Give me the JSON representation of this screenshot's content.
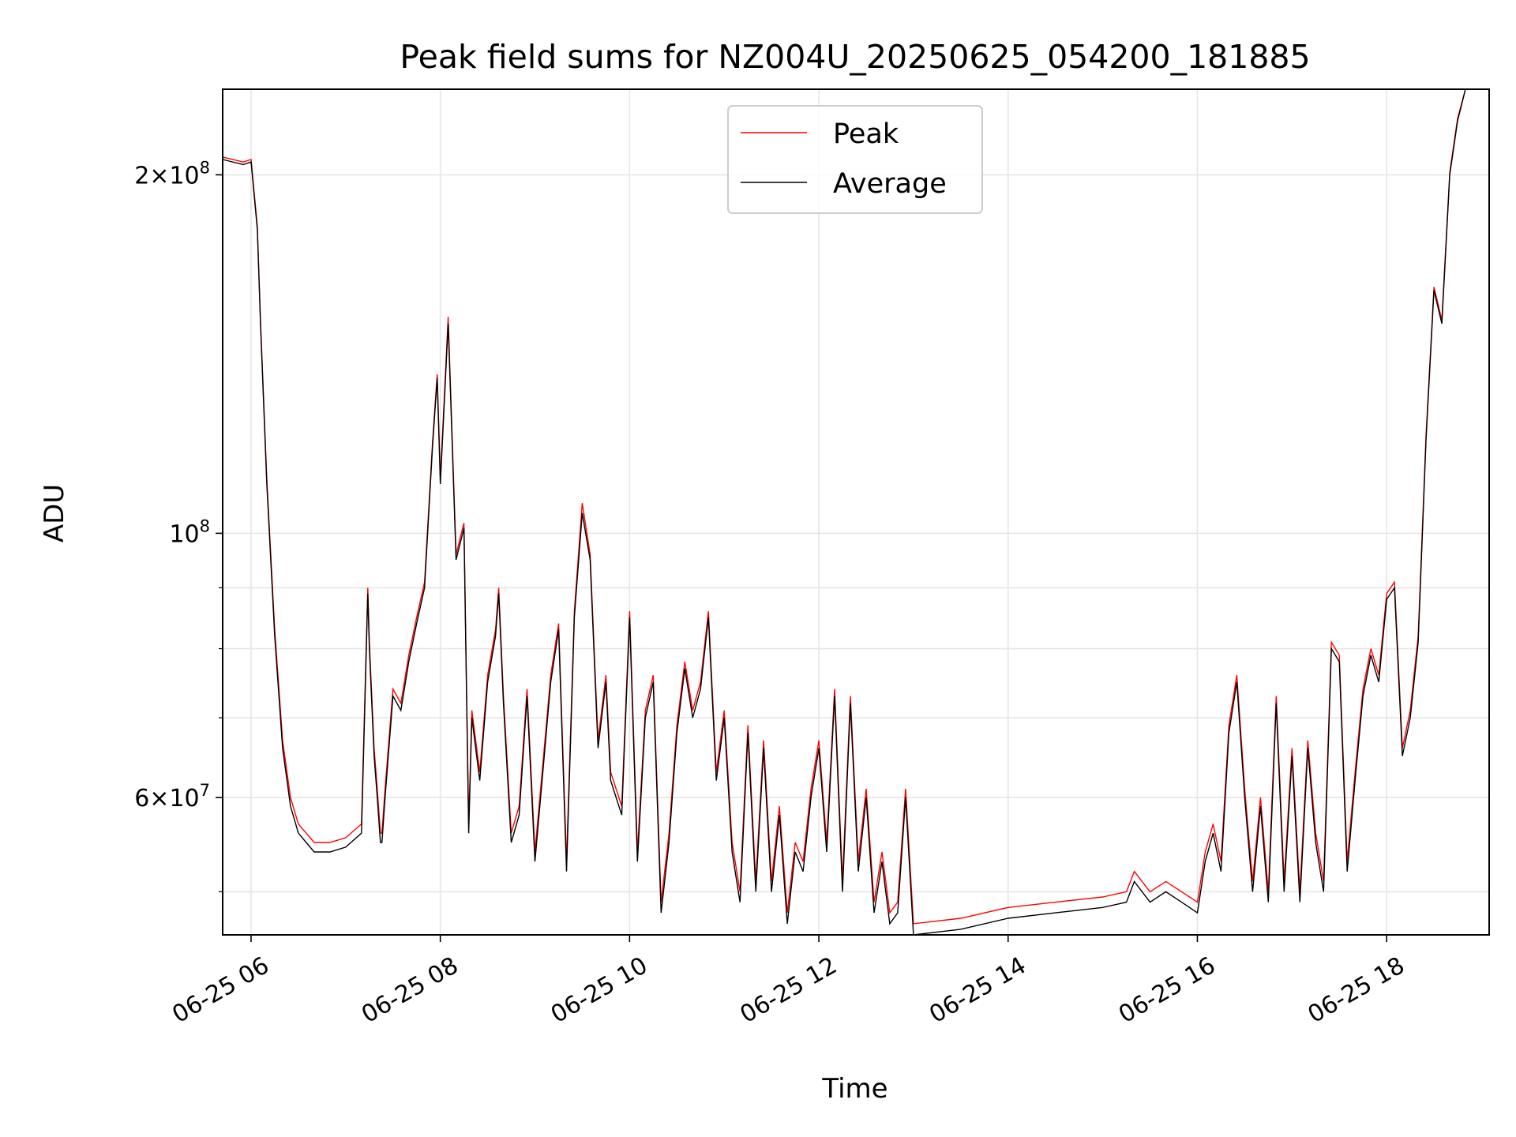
{
  "chart_data": {
    "type": "line",
    "title": "Peak field sums for NZ004U_20250625_054200_181885",
    "xlabel": "Time",
    "ylabel": "ADU",
    "yscale": "log",
    "grid": true,
    "legend_position": "upper center",
    "xlim": [
      "2025-06-25 05:42",
      "2025-06-25 19:05"
    ],
    "ylim": [
      46000000,
      236000000
    ],
    "x_ticks": [
      {
        "value": "2025-06-25 06:00",
        "label": "06-25 06"
      },
      {
        "value": "2025-06-25 08:00",
        "label": "06-25 08"
      },
      {
        "value": "2025-06-25 10:00",
        "label": "06-25 10"
      },
      {
        "value": "2025-06-25 12:00",
        "label": "06-25 12"
      },
      {
        "value": "2025-06-25 14:00",
        "label": "06-25 14"
      },
      {
        "value": "2025-06-25 16:00",
        "label": "06-25 16"
      },
      {
        "value": "2025-06-25 18:00",
        "label": "06-25 18"
      }
    ],
    "y_major_ticks": [
      {
        "value": 60000000,
        "mantissa": "6",
        "base": "10",
        "exponent": "7"
      },
      {
        "value": 100000000,
        "mantissa": "",
        "base": "10",
        "exponent": "8"
      },
      {
        "value": 200000000,
        "mantissa": "2",
        "base": "10",
        "exponent": "8"
      }
    ],
    "y_minor_ticks": [
      50000000,
      70000000,
      80000000,
      90000000
    ],
    "series": [
      {
        "name": "Peak",
        "color": "#ff0000"
      },
      {
        "name": "Average",
        "color": "#000000"
      }
    ],
    "x": [
      "05:42",
      "05:55",
      "06:00",
      "06:04",
      "06:06",
      "06:10",
      "06:15",
      "06:20",
      "06:25",
      "06:30",
      "06:40",
      "06:50",
      "07:00",
      "07:10",
      "07:14",
      "07:15",
      "07:18",
      "07:20",
      "07:22",
      "07:23",
      "07:25",
      "07:30",
      "07:35",
      "07:40",
      "07:45",
      "07:50",
      "07:55",
      "07:58",
      "08:00",
      "08:05",
      "08:10",
      "08:15",
      "08:18",
      "08:20",
      "08:25",
      "08:30",
      "08:35",
      "08:37",
      "08:40",
      "08:45",
      "08:50",
      "08:55",
      "09:00",
      "09:05",
      "09:10",
      "09:15",
      "09:20",
      "09:25",
      "09:30",
      "09:35",
      "09:40",
      "09:45",
      "09:48",
      "09:55",
      "10:00",
      "10:05",
      "10:10",
      "10:15",
      "10:20",
      "10:25",
      "10:30",
      "10:35",
      "10:40",
      "10:45",
      "10:50",
      "10:55",
      "11:00",
      "11:05",
      "11:10",
      "11:15",
      "11:20",
      "11:25",
      "11:30",
      "11:35",
      "11:40",
      "11:45",
      "11:50",
      "11:55",
      "12:00",
      "12:05",
      "12:10",
      "12:15",
      "12:20",
      "12:25",
      "12:30",
      "12:35",
      "12:40",
      "12:45",
      "12:50",
      "12:55",
      "13:00",
      "13:30",
      "14:00",
      "14:30",
      "15:00",
      "15:15",
      "15:20",
      "15:30",
      "15:40",
      "15:50",
      "16:00",
      "16:05",
      "16:10",
      "16:15",
      "16:20",
      "16:25",
      "16:30",
      "16:35",
      "16:40",
      "16:45",
      "16:50",
      "16:55",
      "17:00",
      "17:05",
      "17:10",
      "17:15",
      "17:20",
      "17:25",
      "17:30",
      "17:35",
      "17:40",
      "17:45",
      "17:50",
      "17:55",
      "18:00",
      "18:05",
      "18:10",
      "18:15",
      "18:20",
      "18:25",
      "18:30",
      "18:35",
      "18:40",
      "18:45",
      "18:50",
      "18:55",
      "19:05"
    ],
    "average": [
      206,
      204,
      205,
      180,
      150,
      110,
      82,
      66,
      59,
      56,
      54,
      54,
      54.5,
      56,
      89,
      80,
      65,
      60,
      55,
      55,
      60,
      73,
      71,
      78,
      84,
      90,
      118,
      135,
      110,
      150,
      95,
      101,
      56,
      70,
      62,
      75,
      82,
      89,
      72,
      55,
      58,
      73,
      53,
      63,
      75,
      83,
      52,
      85,
      104,
      95,
      66,
      75,
      62,
      58,
      85,
      53,
      70,
      75,
      48,
      55,
      68,
      77,
      70,
      74,
      85,
      62,
      70,
      54,
      49,
      68,
      50,
      66,
      50,
      58,
      47,
      54,
      52,
      60,
      66,
      54,
      73,
      50,
      72,
      52,
      60,
      48,
      53,
      47,
      48,
      60,
      46,
      46.5,
      47.5,
      48,
      48.5,
      49,
      51,
      49,
      50,
      49,
      48,
      53,
      56,
      52,
      68,
      75,
      60,
      50,
      59,
      49,
      72,
      50,
      65,
      49,
      66,
      55,
      50,
      80,
      78,
      52,
      62,
      73,
      79,
      75,
      88,
      90,
      65,
      70,
      81,
      120,
      160,
      150,
      200,
      222,
      240
    ],
    "peak": [
      207,
      205,
      206,
      181,
      151,
      111,
      83,
      67,
      60,
      57,
      55,
      55,
      55.5,
      57,
      90,
      81,
      66,
      61,
      56,
      56,
      61,
      74,
      72,
      79,
      85,
      91,
      119,
      136,
      111,
      152,
      96,
      102,
      57,
      71,
      63,
      76,
      83,
      90,
      73,
      56,
      59,
      74,
      54,
      64,
      76,
      84,
      53,
      86,
      106,
      96,
      67,
      76,
      63,
      59,
      86,
      54,
      71,
      76,
      49,
      56,
      69,
      78,
      71,
      75,
      86,
      63,
      71,
      55,
      50,
      69,
      51,
      67,
      51,
      59,
      48,
      55,
      53,
      61,
      67,
      55,
      74,
      51,
      73,
      53,
      61,
      49,
      54,
      48,
      49,
      61,
      47,
      47.5,
      48.5,
      49,
      49.5,
      50,
      52,
      50,
      51,
      50,
      49,
      54,
      57,
      53,
      69,
      76,
      61,
      51,
      60,
      50,
      73,
      51,
      66,
      50,
      67,
      56,
      51,
      81,
      79,
      53,
      63,
      74,
      80,
      76,
      89,
      91,
      66,
      71,
      82,
      121,
      161,
      151,
      201,
      223,
      241
    ]
  }
}
